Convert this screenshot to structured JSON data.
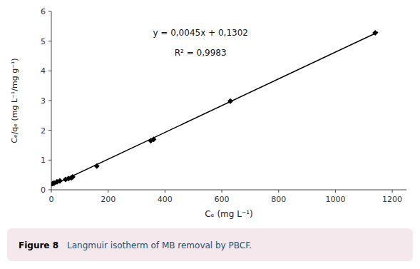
{
  "chart_data": {
    "type": "scatter",
    "caption": {
      "label": "Figure 8",
      "text": "Langmuir isotherm of MB removal by PBCF."
    },
    "x_label": "Cₑ (mg L⁻¹)",
    "y_label": "Cₑ/qₑ (mg L⁻¹/mg g⁻¹)",
    "series": [
      {
        "type": "scatter",
        "color": "black",
        "marker": "diamond",
        "x": [
          5,
          10,
          20,
          30,
          50,
          60,
          70,
          75,
          160,
          350,
          360,
          630,
          1140
        ],
        "values": [
          0.21,
          0.23,
          0.27,
          0.3,
          0.35,
          0.38,
          0.4,
          0.43,
          0.8,
          1.65,
          1.7,
          2.98,
          5.28
        ]
      },
      {
        "type": "line",
        "color": "black",
        "line_style": "solid",
        "x": [
          0,
          1150
        ],
        "values": [
          0.1302,
          5.3052
        ]
      }
    ],
    "annotations": [
      "y = 0,0045x + 0,1302",
      "R² = 0,9983"
    ],
    "xlim": [
      0,
      1250
    ],
    "ylim": [
      0,
      6
    ],
    "xticks": [
      0,
      200,
      400,
      600,
      800,
      1000,
      1200
    ],
    "yticks": [
      0,
      1,
      2,
      3,
      4,
      5,
      6
    ],
    "grid": false
  }
}
